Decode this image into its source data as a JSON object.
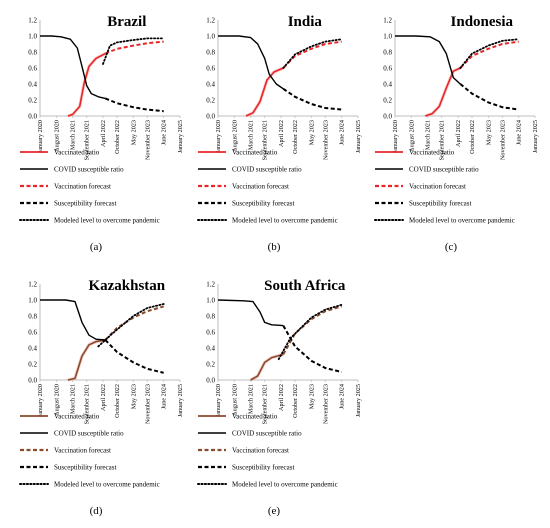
{
  "figure": {
    "x_tick_labels": [
      "January 2020",
      "August 2020",
      "March 2021",
      "September 2021",
      "April 2022",
      "October 2022",
      "May 2023",
      "November 2023",
      "June 2024",
      "January 2025"
    ],
    "y_tick_labels": [
      "0.0",
      "0.2",
      "0.4",
      "0.6",
      "0.8",
      "1.0",
      "1.2"
    ],
    "legend_items": [
      {
        "key": "vaccinated",
        "label": "Vaccinated ratio",
        "style": "solid"
      },
      {
        "key": "susceptible",
        "label": "COVID susceptible ratio",
        "style": "solid"
      },
      {
        "key": "vacc_forecast",
        "label": "Vaccination forecast",
        "style": "dashed"
      },
      {
        "key": "susc_forecast",
        "label": "Susceptibility forecast",
        "style": "dashed"
      },
      {
        "key": "modeled",
        "label": "Modeled level to overcome pandemic",
        "style": "dotted"
      }
    ]
  },
  "colors": {
    "red": "#e8262a",
    "brown": "#8a4a2c",
    "pink_shadow": "#f2b8b0",
    "black": "#000000",
    "axis": "#bdbdbd"
  },
  "chart_data": [
    {
      "type": "line",
      "title": "Brazil",
      "panel_label": "(a)",
      "vacc_color": "red",
      "x": [
        "2020-01",
        "2020-08",
        "2021-03",
        "2021-09",
        "2022-04",
        "2022-10",
        "2023-05",
        "2023-11",
        "2024-06",
        "2025-01"
      ],
      "ylim": [
        0,
        1.2
      ],
      "series": [
        {
          "name": "Vaccinated ratio",
          "points": [
            [
              "2021-01",
              0.0
            ],
            [
              "2021-03",
              0.02
            ],
            [
              "2021-06",
              0.12
            ],
            [
              "2021-08",
              0.42
            ],
            [
              "2021-10",
              0.62
            ],
            [
              "2022-01",
              0.72
            ],
            [
              "2022-05",
              0.78
            ]
          ]
        },
        {
          "name": "COVID susceptible ratio",
          "points": [
            [
              "2020-01",
              1.0
            ],
            [
              "2020-06",
              1.0
            ],
            [
              "2020-10",
              0.99
            ],
            [
              "2021-02",
              0.96
            ],
            [
              "2021-05",
              0.85
            ],
            [
              "2021-07",
              0.62
            ],
            [
              "2021-09",
              0.38
            ],
            [
              "2021-11",
              0.28
            ],
            [
              "2022-02",
              0.24
            ],
            [
              "2022-05",
              0.22
            ]
          ]
        },
        {
          "name": "Vaccination forecast",
          "points": [
            [
              "2022-05",
              0.78
            ],
            [
              "2022-10",
              0.84
            ],
            [
              "2023-05",
              0.88
            ],
            [
              "2023-11",
              0.91
            ],
            [
              "2024-06",
              0.93
            ]
          ]
        },
        {
          "name": "Susceptibility forecast",
          "points": [
            [
              "2022-05",
              0.22
            ],
            [
              "2022-10",
              0.16
            ],
            [
              "2023-05",
              0.11
            ],
            [
              "2023-11",
              0.08
            ],
            [
              "2024-06",
              0.06
            ]
          ]
        },
        {
          "name": "Modeled level to overcome pandemic",
          "points": [
            [
              "2022-04",
              0.65
            ],
            [
              "2022-07",
              0.88
            ],
            [
              "2022-10",
              0.92
            ],
            [
              "2023-05",
              0.95
            ],
            [
              "2023-11",
              0.97
            ],
            [
              "2024-06",
              0.97
            ]
          ]
        }
      ]
    },
    {
      "type": "line",
      "title": "India",
      "panel_label": "(b)",
      "vacc_color": "red",
      "x": [
        "2020-01",
        "2020-08",
        "2021-03",
        "2021-09",
        "2022-04",
        "2022-10",
        "2023-05",
        "2023-11",
        "2024-06",
        "2025-01"
      ],
      "ylim": [
        0,
        1.2
      ],
      "series": [
        {
          "name": "Vaccinated ratio",
          "points": [
            [
              "2021-01",
              0.0
            ],
            [
              "2021-04",
              0.04
            ],
            [
              "2021-07",
              0.18
            ],
            [
              "2021-10",
              0.45
            ],
            [
              "2022-01",
              0.55
            ],
            [
              "2022-05",
              0.6
            ]
          ]
        },
        {
          "name": "COVID susceptible ratio",
          "points": [
            [
              "2020-01",
              1.0
            ],
            [
              "2020-10",
              1.0
            ],
            [
              "2021-03",
              0.98
            ],
            [
              "2021-06",
              0.9
            ],
            [
              "2021-09",
              0.72
            ],
            [
              "2021-11",
              0.52
            ],
            [
              "2022-02",
              0.4
            ],
            [
              "2022-05",
              0.34
            ]
          ]
        },
        {
          "name": "Vaccination forecast",
          "points": [
            [
              "2022-05",
              0.6
            ],
            [
              "2022-10",
              0.75
            ],
            [
              "2023-05",
              0.84
            ],
            [
              "2023-11",
              0.9
            ],
            [
              "2024-06",
              0.93
            ]
          ]
        },
        {
          "name": "Susceptibility forecast",
          "points": [
            [
              "2022-05",
              0.34
            ],
            [
              "2022-10",
              0.24
            ],
            [
              "2023-05",
              0.15
            ],
            [
              "2023-11",
              0.1
            ],
            [
              "2024-06",
              0.08
            ]
          ]
        },
        {
          "name": "Modeled level to overcome pandemic",
          "points": [
            [
              "2022-05",
              0.6
            ],
            [
              "2022-10",
              0.77
            ],
            [
              "2023-05",
              0.87
            ],
            [
              "2023-11",
              0.93
            ],
            [
              "2024-06",
              0.96
            ]
          ]
        }
      ]
    },
    {
      "type": "line",
      "title": "Indonesia",
      "panel_label": "(c)",
      "vacc_color": "red",
      "x": [
        "2020-01",
        "2020-08",
        "2021-03",
        "2021-09",
        "2022-04",
        "2022-10",
        "2023-05",
        "2023-11",
        "2024-06",
        "2025-01"
      ],
      "ylim": [
        0,
        1.2
      ],
      "series": [
        {
          "name": "Vaccinated ratio",
          "points": [
            [
              "2021-02",
              0.0
            ],
            [
              "2021-05",
              0.03
            ],
            [
              "2021-08",
              0.12
            ],
            [
              "2021-11",
              0.35
            ],
            [
              "2022-02",
              0.56
            ],
            [
              "2022-05",
              0.6
            ]
          ]
        },
        {
          "name": "COVID susceptible ratio",
          "points": [
            [
              "2020-01",
              1.0
            ],
            [
              "2020-10",
              1.0
            ],
            [
              "2021-04",
              0.99
            ],
            [
              "2021-08",
              0.93
            ],
            [
              "2021-11",
              0.78
            ],
            [
              "2022-02",
              0.48
            ],
            [
              "2022-05",
              0.4
            ]
          ]
        },
        {
          "name": "Vaccination forecast",
          "points": [
            [
              "2022-05",
              0.6
            ],
            [
              "2022-10",
              0.75
            ],
            [
              "2023-05",
              0.84
            ],
            [
              "2023-11",
              0.9
            ],
            [
              "2024-06",
              0.93
            ]
          ]
        },
        {
          "name": "Susceptibility forecast",
          "points": [
            [
              "2022-05",
              0.4
            ],
            [
              "2022-10",
              0.28
            ],
            [
              "2023-05",
              0.17
            ],
            [
              "2023-11",
              0.11
            ],
            [
              "2024-06",
              0.08
            ]
          ]
        },
        {
          "name": "Modeled level to overcome pandemic",
          "points": [
            [
              "2022-05",
              0.6
            ],
            [
              "2022-10",
              0.78
            ],
            [
              "2023-05",
              0.88
            ],
            [
              "2023-11",
              0.94
            ],
            [
              "2024-06",
              0.96
            ]
          ]
        }
      ]
    },
    {
      "type": "line",
      "title": "Kazakhstan",
      "panel_label": "(d)",
      "vacc_color": "brown",
      "x": [
        "2020-01",
        "2020-08",
        "2021-03",
        "2021-09",
        "2022-04",
        "2022-10",
        "2023-05",
        "2023-11",
        "2024-06",
        "2025-01"
      ],
      "ylim": [
        0,
        1.2
      ],
      "series": [
        {
          "name": "Vaccinated ratio",
          "points": [
            [
              "2021-01",
              0.0
            ],
            [
              "2021-04",
              0.02
            ],
            [
              "2021-07",
              0.3
            ],
            [
              "2021-10",
              0.44
            ],
            [
              "2022-01",
              0.48
            ],
            [
              "2022-05",
              0.5
            ]
          ]
        },
        {
          "name": "COVID susceptible ratio",
          "points": [
            [
              "2020-01",
              1.0
            ],
            [
              "2020-12",
              1.0
            ],
            [
              "2021-04",
              0.98
            ],
            [
              "2021-07",
              0.72
            ],
            [
              "2021-10",
              0.56
            ],
            [
              "2022-01",
              0.51
            ],
            [
              "2022-05",
              0.5
            ]
          ]
        },
        {
          "name": "Vaccination forecast",
          "points": [
            [
              "2022-05",
              0.5
            ],
            [
              "2022-10",
              0.65
            ],
            [
              "2023-05",
              0.78
            ],
            [
              "2023-11",
              0.86
            ],
            [
              "2024-06",
              0.92
            ]
          ]
        },
        {
          "name": "Susceptibility forecast",
          "points": [
            [
              "2022-05",
              0.5
            ],
            [
              "2022-10",
              0.35
            ],
            [
              "2023-05",
              0.22
            ],
            [
              "2023-11",
              0.14
            ],
            [
              "2024-06",
              0.09
            ]
          ]
        },
        {
          "name": "Modeled level to overcome pandemic",
          "points": [
            [
              "2022-02",
              0.42
            ],
            [
              "2022-08",
              0.58
            ],
            [
              "2023-05",
              0.8
            ],
            [
              "2023-11",
              0.9
            ],
            [
              "2024-06",
              0.95
            ]
          ]
        }
      ]
    },
    {
      "type": "line",
      "title": "South Africa",
      "panel_label": "(e)",
      "vacc_color": "brown",
      "x": [
        "2020-01",
        "2020-08",
        "2021-03",
        "2021-09",
        "2022-04",
        "2022-10",
        "2023-05",
        "2023-11",
        "2024-06",
        "2025-01"
      ],
      "ylim": [
        0,
        1.2
      ],
      "series": [
        {
          "name": "Vaccinated ratio",
          "points": [
            [
              "2021-03",
              0.0
            ],
            [
              "2021-06",
              0.05
            ],
            [
              "2021-09",
              0.22
            ],
            [
              "2021-12",
              0.28
            ],
            [
              "2022-05",
              0.32
            ]
          ]
        },
        {
          "name": "COVID susceptible ratio",
          "points": [
            [
              "2020-01",
              1.0
            ],
            [
              "2020-12",
              0.99
            ],
            [
              "2021-04",
              0.98
            ],
            [
              "2021-07",
              0.85
            ],
            [
              "2021-09",
              0.72
            ],
            [
              "2021-12",
              0.69
            ],
            [
              "2022-05",
              0.68
            ]
          ]
        },
        {
          "name": "Vaccination forecast",
          "points": [
            [
              "2022-05",
              0.32
            ],
            [
              "2022-10",
              0.58
            ],
            [
              "2023-05",
              0.76
            ],
            [
              "2023-11",
              0.86
            ],
            [
              "2024-06",
              0.92
            ]
          ]
        },
        {
          "name": "Susceptibility forecast",
          "points": [
            [
              "2022-05",
              0.68
            ],
            [
              "2022-10",
              0.42
            ],
            [
              "2023-05",
              0.24
            ],
            [
              "2023-11",
              0.15
            ],
            [
              "2024-06",
              0.1
            ]
          ]
        },
        {
          "name": "Modeled level to overcome pandemic",
          "points": [
            [
              "2022-03",
              0.26
            ],
            [
              "2022-08",
              0.52
            ],
            [
              "2023-05",
              0.78
            ],
            [
              "2023-11",
              0.88
            ],
            [
              "2024-06",
              0.94
            ]
          ]
        }
      ]
    }
  ]
}
